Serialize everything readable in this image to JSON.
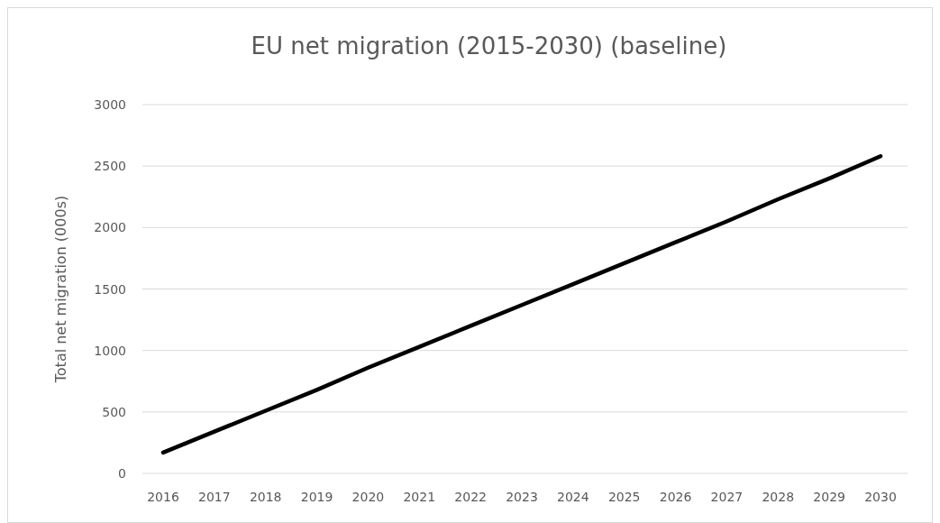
{
  "chart_data": {
    "type": "line",
    "title": "EU net migration (2015-2030) (baseline)",
    "ylabel": "Total net migration  (000s)",
    "categories": [
      "2016",
      "2017",
      "2018",
      "2019",
      "2020",
      "2021",
      "2022",
      "2023",
      "2024",
      "2025",
      "2026",
      "2027",
      "2028",
      "2029",
      "2030"
    ],
    "series": [
      {
        "color": "#000000",
        "values": [
          170,
          340,
          510,
          680,
          860,
          1030,
          1200,
          1370,
          1540,
          1710,
          1880,
          2050,
          2230,
          2400,
          2580
        ]
      }
    ],
    "ylim": [
      0,
      3000
    ],
    "yticks": [
      0,
      500,
      1000,
      1500,
      2000,
      2500,
      3000
    ],
    "grid": "y",
    "marker": "none",
    "line_style": "solid"
  }
}
